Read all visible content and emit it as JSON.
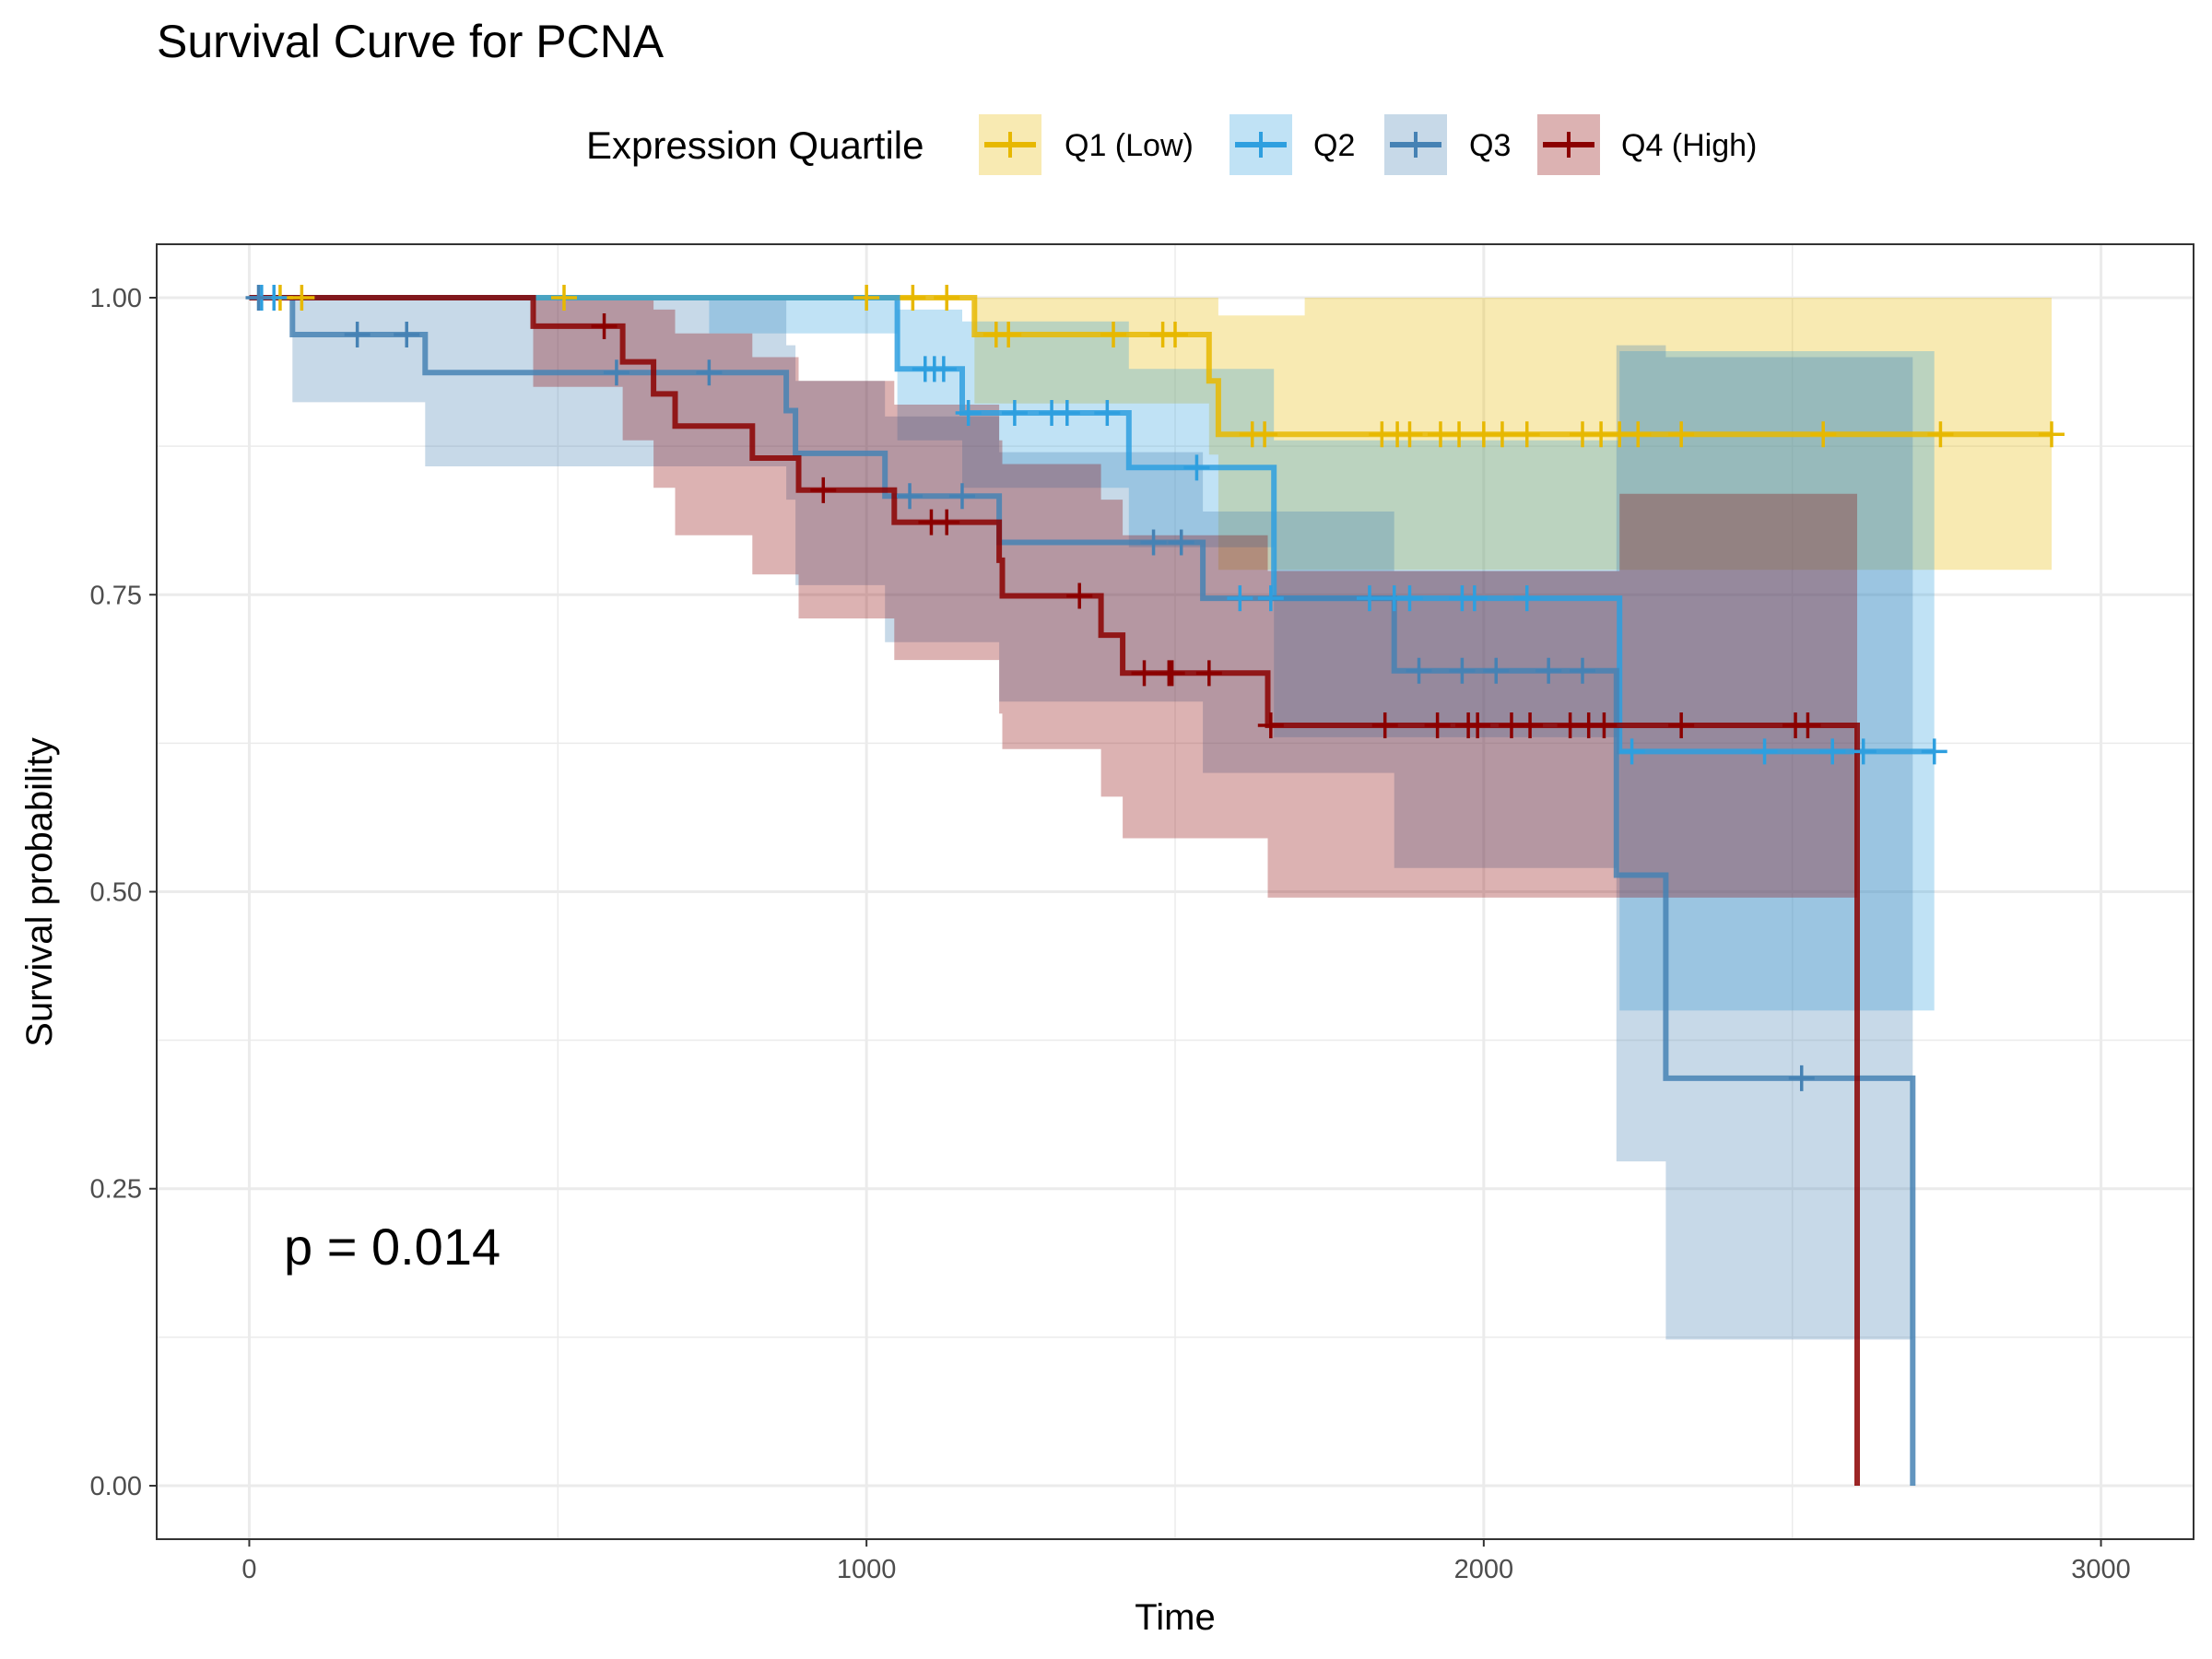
{
  "chart_data": {
    "type": "line",
    "title": "Survival Curve for PCNA",
    "xlabel": "Time",
    "ylabel": "Survival probability",
    "xlim": [
      -150,
      3150
    ],
    "ylim": [
      -0.045,
      1.045
    ],
    "x_ticks": [
      0,
      1000,
      2000,
      3000
    ],
    "x_tick_labels": [
      "0",
      "1000",
      "2000",
      "3000"
    ],
    "y_ticks": [
      0,
      0.25,
      0.5,
      0.75,
      1
    ],
    "y_tick_labels": [
      "0.00",
      "0.25",
      "0.50",
      "0.75",
      "1.00"
    ],
    "grid": true,
    "legend_title": "Expression Quartile",
    "legend_position": "top",
    "annotation": "p = 0.014",
    "series": [
      {
        "name": "Q1 (Low)",
        "color": "#E7B800",
        "steps": [
          [
            0,
            1.0
          ],
          [
            1175,
            0.969
          ],
          [
            1555,
            0.93
          ],
          [
            1570,
            0.885
          ],
          [
            2920,
            0.885
          ]
        ],
        "band": [
          [
            0,
            1.0,
            1.0
          ],
          [
            1175,
            1.0,
            0.911
          ],
          [
            1555,
            1.0,
            0.868
          ],
          [
            1570,
            0.985,
            0.771
          ],
          [
            1710,
            1.0,
            0.771
          ],
          [
            2920,
            1.0,
            0.771
          ]
        ],
        "censors": [
          [
            50,
            1.0
          ],
          [
            85,
            1.0
          ],
          [
            510,
            1.0
          ],
          [
            1000,
            1.0
          ],
          [
            1075,
            1.0
          ],
          [
            1130,
            1.0
          ],
          [
            1210,
            0.969
          ],
          [
            1230,
            0.969
          ],
          [
            1400,
            0.969
          ],
          [
            1480,
            0.969
          ],
          [
            1500,
            0.969
          ],
          [
            1625,
            0.885
          ],
          [
            1645,
            0.885
          ],
          [
            1835,
            0.885
          ],
          [
            1860,
            0.885
          ],
          [
            1880,
            0.885
          ],
          [
            1930,
            0.885
          ],
          [
            1960,
            0.885
          ],
          [
            2000,
            0.885
          ],
          [
            2030,
            0.885
          ],
          [
            2070,
            0.885
          ],
          [
            2160,
            0.885
          ],
          [
            2190,
            0.885
          ],
          [
            2220,
            0.885
          ],
          [
            2250,
            0.885
          ],
          [
            2320,
            0.885
          ],
          [
            2550,
            0.885
          ],
          [
            2740,
            0.885
          ],
          [
            2920,
            0.885
          ]
        ]
      },
      {
        "name": "Q2",
        "color": "#2E9FDF",
        "steps": [
          [
            0,
            1.0
          ],
          [
            745,
            1.0
          ],
          [
            1050,
            0.94
          ],
          [
            1155,
            0.903
          ],
          [
            1425,
            0.857
          ],
          [
            1660,
            0.747
          ],
          [
            2220,
            0.618
          ],
          [
            2730,
            0.618
          ]
        ],
        "band": [
          [
            0,
            1.0,
            1.0
          ],
          [
            745,
            1.0,
            0.97
          ],
          [
            1050,
            0.99,
            0.88
          ],
          [
            1155,
            0.98,
            0.84
          ],
          [
            1425,
            0.94,
            0.79
          ],
          [
            1660,
            0.88,
            0.63
          ],
          [
            2220,
            0.955,
            0.4
          ],
          [
            2730,
            0.955,
            0.4
          ]
        ],
        "censors": [
          [
            20,
            1.0
          ],
          [
            40,
            1.0
          ],
          [
            1095,
            0.94
          ],
          [
            1110,
            0.94
          ],
          [
            1125,
            0.94
          ],
          [
            1165,
            0.903
          ],
          [
            1240,
            0.903
          ],
          [
            1300,
            0.903
          ],
          [
            1325,
            0.903
          ],
          [
            1390,
            0.903
          ],
          [
            1535,
            0.857
          ],
          [
            1605,
            0.747
          ],
          [
            1655,
            0.747
          ],
          [
            1815,
            0.747
          ],
          [
            1855,
            0.747
          ],
          [
            1880,
            0.747
          ],
          [
            1965,
            0.747
          ],
          [
            1985,
            0.747
          ],
          [
            2070,
            0.747
          ],
          [
            2240,
            0.618
          ],
          [
            2455,
            0.618
          ],
          [
            2565,
            0.618
          ],
          [
            2615,
            0.618
          ],
          [
            2730,
            0.618
          ]
        ]
      },
      {
        "name": "Q3",
        "color": "#4682B4",
        "steps": [
          [
            0,
            1.0
          ],
          [
            70,
            0.969
          ],
          [
            285,
            0.937
          ],
          [
            870,
            0.905
          ],
          [
            885,
            0.869
          ],
          [
            1030,
            0.833
          ],
          [
            1215,
            0.794
          ],
          [
            1545,
            0.747
          ],
          [
            1855,
            0.686
          ],
          [
            2215,
            0.514
          ],
          [
            2295,
            0.343
          ],
          [
            2695,
            0.0
          ]
        ],
        "band": [
          [
            0,
            1.0,
            1.0
          ],
          [
            70,
            1.0,
            0.912
          ],
          [
            285,
            1.0,
            0.858
          ],
          [
            870,
            0.96,
            0.83
          ],
          [
            885,
            0.93,
            0.758
          ],
          [
            1030,
            0.9,
            0.71
          ],
          [
            1215,
            0.87,
            0.66
          ],
          [
            1545,
            0.82,
            0.6
          ],
          [
            1855,
            0.77,
            0.52
          ],
          [
            2215,
            0.96,
            0.273
          ],
          [
            2295,
            0.95,
            0.123
          ],
          [
            2695,
            0.95,
            0.123
          ]
        ],
        "censors": [
          [
            15,
            1.0
          ],
          [
            175,
            0.969
          ],
          [
            255,
            0.969
          ],
          [
            595,
            0.937
          ],
          [
            745,
            0.937
          ],
          [
            1070,
            0.833
          ],
          [
            1155,
            0.833
          ],
          [
            1465,
            0.794
          ],
          [
            1510,
            0.794
          ],
          [
            1895,
            0.686
          ],
          [
            1965,
            0.686
          ],
          [
            2020,
            0.686
          ],
          [
            2105,
            0.686
          ],
          [
            2160,
            0.686
          ],
          [
            2515,
            0.343
          ]
        ]
      },
      {
        "name": "Q4 (High)",
        "color": "#8B0000",
        "steps": [
          [
            0,
            1.0
          ],
          [
            460,
            0.976
          ],
          [
            605,
            0.946
          ],
          [
            655,
            0.919
          ],
          [
            690,
            0.892
          ],
          [
            815,
            0.865
          ],
          [
            890,
            0.838
          ],
          [
            1045,
            0.811
          ],
          [
            1215,
            0.779
          ],
          [
            1220,
            0.749
          ],
          [
            1380,
            0.716
          ],
          [
            1415,
            0.684
          ],
          [
            1650,
            0.64
          ],
          [
            2605,
            0.0
          ]
        ],
        "band": [
          [
            0,
            1.0,
            1.0
          ],
          [
            460,
            1.0,
            0.925
          ],
          [
            605,
            1.0,
            0.88
          ],
          [
            655,
            0.99,
            0.84
          ],
          [
            690,
            0.97,
            0.8
          ],
          [
            815,
            0.95,
            0.767
          ],
          [
            890,
            0.93,
            0.73
          ],
          [
            1045,
            0.91,
            0.695
          ],
          [
            1215,
            0.88,
            0.65
          ],
          [
            1220,
            0.86,
            0.62
          ],
          [
            1380,
            0.83,
            0.58
          ],
          [
            1415,
            0.8,
            0.545
          ],
          [
            1650,
            0.77,
            0.495
          ],
          [
            2220,
            0.835,
            0.495
          ],
          [
            2605,
            0.835,
            0.495
          ]
        ],
        "censors": [
          [
            575,
            0.976
          ],
          [
            930,
            0.838
          ],
          [
            1105,
            0.811
          ],
          [
            1130,
            0.811
          ],
          [
            1345,
            0.749
          ],
          [
            1450,
            0.684
          ],
          [
            1490,
            0.684
          ],
          [
            1495,
            0.684
          ],
          [
            1555,
            0.684
          ],
          [
            1655,
            0.64
          ],
          [
            1840,
            0.64
          ],
          [
            1925,
            0.64
          ],
          [
            1975,
            0.64
          ],
          [
            1990,
            0.64
          ],
          [
            2045,
            0.64
          ],
          [
            2075,
            0.64
          ],
          [
            2140,
            0.64
          ],
          [
            2170,
            0.64
          ],
          [
            2195,
            0.64
          ],
          [
            2320,
            0.64
          ],
          [
            2505,
            0.64
          ],
          [
            2525,
            0.64
          ]
        ]
      }
    ]
  }
}
